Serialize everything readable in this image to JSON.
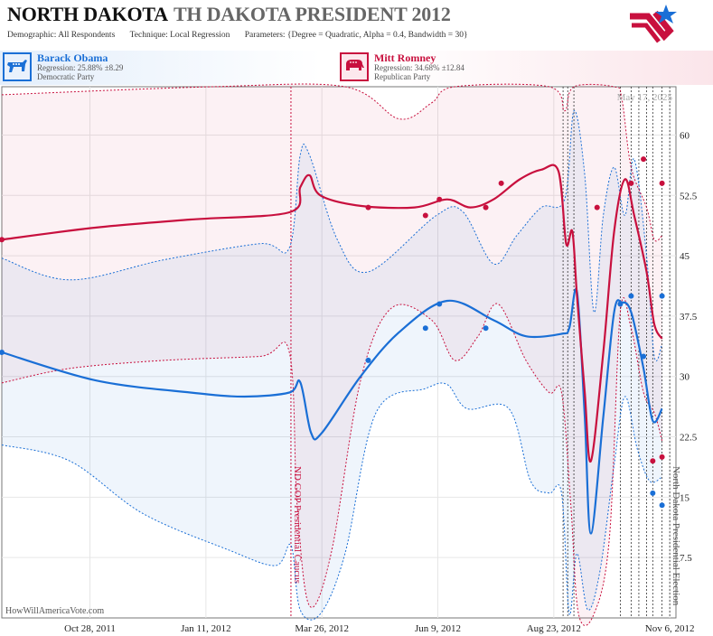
{
  "header": {
    "title_main": "NORTH DAKOTA",
    "title_sub": "TH DAKOTA PRESIDENT 2012",
    "demographic_label": "Demographic:",
    "demographic_value": "All Respondents",
    "technique_label": "Technique:",
    "technique_value": "Local Regression",
    "parameters_label": "Parameters:",
    "parameters_value": "{Degree = Quadratic, Alpha = 0.4, Bandwidth = 30}"
  },
  "candidates": [
    {
      "name": "Barack Obama",
      "regression": "Regression: 25.88% ±8.29",
      "party": "Democratic Party",
      "color": "#1a6fd6"
    },
    {
      "name": "Mitt Romney",
      "regression": "Regression: 34.68% ±12.84",
      "party": "Republican Party",
      "color": "#c8103e"
    }
  ],
  "watermark": "HowWillAmericaVote.com",
  "datestamp": "May 17, 2025",
  "chart_data": {
    "type": "line",
    "x_axis": {
      "ticks": [
        "Oct 28, 2011",
        "Jan 11, 2012",
        "Mar 26, 2012",
        "Jun 9, 2012",
        "Aug 23, 2012",
        "Nov 6, 2012"
      ],
      "range": [
        "2011-09-01",
        "2012-11-10"
      ]
    },
    "y_axis": {
      "ticks": [
        "7.5",
        "15",
        "22.5",
        "30",
        "37.5",
        "45",
        "52.5",
        "60"
      ],
      "range": [
        0,
        66
      ]
    },
    "grid": true,
    "events": [
      {
        "date": "2012-03-06",
        "label": "ND GOP Presidential Caucus",
        "color": "#c8103e"
      },
      {
        "date": "2012-11-06",
        "label": "North Dakota Presidential Election",
        "color": "#555555"
      }
    ],
    "series": [
      {
        "name": "Barack Obama",
        "color": "#1a6fd6",
        "polls": [
          {
            "x": "2011-09-01",
            "y": 33.0
          },
          {
            "x": "2012-04-25",
            "y": 32.0
          },
          {
            "x": "2012-06-01",
            "y": 36.0
          },
          {
            "x": "2012-06-10",
            "y": 39.0
          },
          {
            "x": "2012-07-10",
            "y": 36.0
          },
          {
            "x": "2012-10-05",
            "y": 39.0
          },
          {
            "x": "2012-10-12",
            "y": 40.0
          },
          {
            "x": "2012-10-20",
            "y": 32.5
          },
          {
            "x": "2012-10-26",
            "y": 15.5
          },
          {
            "x": "2012-11-01",
            "y": 40.0
          },
          {
            "x": "2012-11-01",
            "y": 14.0
          }
        ],
        "trend": [
          {
            "x": "2011-09-01",
            "y": 33.0
          },
          {
            "x": "2011-11-01",
            "y": 29.5
          },
          {
            "x": "2012-01-01",
            "y": 28.0
          },
          {
            "x": "2012-02-05",
            "y": 27.5
          },
          {
            "x": "2012-03-05",
            "y": 28.0
          },
          {
            "x": "2012-03-12",
            "y": 29.3
          },
          {
            "x": "2012-03-19",
            "y": 23.0
          },
          {
            "x": "2012-03-26",
            "y": 23.0
          },
          {
            "x": "2012-04-20",
            "y": 30.0
          },
          {
            "x": "2012-05-15",
            "y": 35.5
          },
          {
            "x": "2012-06-15",
            "y": 39.4
          },
          {
            "x": "2012-07-15",
            "y": 37.0
          },
          {
            "x": "2012-08-05",
            "y": 35.0
          },
          {
            "x": "2012-08-28",
            "y": 35.3
          },
          {
            "x": "2012-09-02",
            "y": 36.0
          },
          {
            "x": "2012-09-07",
            "y": 40.5
          },
          {
            "x": "2012-09-12",
            "y": 25.0
          },
          {
            "x": "2012-09-16",
            "y": 10.5
          },
          {
            "x": "2012-09-24",
            "y": 25.0
          },
          {
            "x": "2012-10-01",
            "y": 38.0
          },
          {
            "x": "2012-10-06",
            "y": 39.2
          },
          {
            "x": "2012-10-12",
            "y": 38.0
          },
          {
            "x": "2012-10-20",
            "y": 31.0
          },
          {
            "x": "2012-10-26",
            "y": 24.5
          },
          {
            "x": "2012-11-01",
            "y": 26.0
          }
        ],
        "upper": [
          {
            "x": "2011-09-01",
            "y": 44.7
          },
          {
            "x": "2011-10-15",
            "y": 42.0
          },
          {
            "x": "2011-12-15",
            "y": 44.5
          },
          {
            "x": "2012-02-15",
            "y": 46.5
          },
          {
            "x": "2012-03-05",
            "y": 46.0
          },
          {
            "x": "2012-03-12",
            "y": 57.5
          },
          {
            "x": "2012-03-18",
            "y": 57.5
          },
          {
            "x": "2012-04-05",
            "y": 47.0
          },
          {
            "x": "2012-04-25",
            "y": 43.0
          },
          {
            "x": "2012-06-08",
            "y": 50.0
          },
          {
            "x": "2012-06-25",
            "y": 50.5
          },
          {
            "x": "2012-07-15",
            "y": 44.0
          },
          {
            "x": "2012-07-30",
            "y": 47.5
          },
          {
            "x": "2012-08-15",
            "y": 51.0
          },
          {
            "x": "2012-08-30",
            "y": 52.0
          },
          {
            "x": "2012-09-05",
            "y": 63.0
          },
          {
            "x": "2012-09-12",
            "y": 55.0
          },
          {
            "x": "2012-09-18",
            "y": 38.0
          },
          {
            "x": "2012-09-24",
            "y": 50.0
          },
          {
            "x": "2012-10-01",
            "y": 56.0
          },
          {
            "x": "2012-10-08",
            "y": 50.0
          },
          {
            "x": "2012-10-14",
            "y": 57.0
          },
          {
            "x": "2012-10-22",
            "y": 45.0
          },
          {
            "x": "2012-10-27",
            "y": 32.5
          },
          {
            "x": "2012-11-01",
            "y": 34.0
          }
        ],
        "lower": [
          {
            "x": "2011-09-01",
            "y": 21.5
          },
          {
            "x": "2011-10-15",
            "y": 19.5
          },
          {
            "x": "2011-12-01",
            "y": 13.0
          },
          {
            "x": "2012-01-25",
            "y": 8.5
          },
          {
            "x": "2012-02-25",
            "y": 6.5
          },
          {
            "x": "2012-03-06",
            "y": 9.0
          },
          {
            "x": "2012-03-12",
            "y": 1.0
          },
          {
            "x": "2012-03-25",
            "y": 0.5
          },
          {
            "x": "2012-04-10",
            "y": 8.0
          },
          {
            "x": "2012-04-30",
            "y": 25.5
          },
          {
            "x": "2012-06-01",
            "y": 28.5
          },
          {
            "x": "2012-06-15",
            "y": 29.0
          },
          {
            "x": "2012-06-28",
            "y": 26.0
          },
          {
            "x": "2012-07-25",
            "y": 26.0
          },
          {
            "x": "2012-08-08",
            "y": 17.0
          },
          {
            "x": "2012-08-20",
            "y": 15.5
          },
          {
            "x": "2012-08-28",
            "y": 15.5
          },
          {
            "x": "2012-09-02",
            "y": 0.5
          },
          {
            "x": "2012-09-07",
            "y": 8.0
          },
          {
            "x": "2012-09-14",
            "y": 1.0
          },
          {
            "x": "2012-09-22",
            "y": 6.0
          },
          {
            "x": "2012-10-01",
            "y": 19.0
          },
          {
            "x": "2012-10-08",
            "y": 27.5
          },
          {
            "x": "2012-10-16",
            "y": 21.0
          },
          {
            "x": "2012-10-24",
            "y": 17.0
          },
          {
            "x": "2012-11-01",
            "y": 17.5
          }
        ]
      },
      {
        "name": "Mitt Romney",
        "color": "#c8103e",
        "polls": [
          {
            "x": "2011-09-01",
            "y": 47.0
          },
          {
            "x": "2012-04-25",
            "y": 51.0
          },
          {
            "x": "2012-06-01",
            "y": 50.0
          },
          {
            "x": "2012-06-10",
            "y": 52.0
          },
          {
            "x": "2012-07-10",
            "y": 51.0
          },
          {
            "x": "2012-07-20",
            "y": 54.0
          },
          {
            "x": "2012-09-20",
            "y": 51.0
          },
          {
            "x": "2012-10-12",
            "y": 54.0
          },
          {
            "x": "2012-10-20",
            "y": 57.0
          },
          {
            "x": "2012-10-26",
            "y": 19.5
          },
          {
            "x": "2012-11-01",
            "y": 54.0
          },
          {
            "x": "2012-11-01",
            "y": 20.0
          }
        ],
        "trend": [
          {
            "x": "2011-09-01",
            "y": 47.0
          },
          {
            "x": "2011-11-01",
            "y": 48.5
          },
          {
            "x": "2012-01-01",
            "y": 49.5
          },
          {
            "x": "2012-03-05",
            "y": 50.4
          },
          {
            "x": "2012-03-12",
            "y": 53.5
          },
          {
            "x": "2012-03-18",
            "y": 55.0
          },
          {
            "x": "2012-03-25",
            "y": 52.5
          },
          {
            "x": "2012-04-20",
            "y": 51.2
          },
          {
            "x": "2012-05-25",
            "y": 51.0
          },
          {
            "x": "2012-06-15",
            "y": 52.0
          },
          {
            "x": "2012-06-30",
            "y": 51.0
          },
          {
            "x": "2012-07-15",
            "y": 52.0
          },
          {
            "x": "2012-08-01",
            "y": 54.5
          },
          {
            "x": "2012-08-15",
            "y": 55.7
          },
          {
            "x": "2012-08-26",
            "y": 55.5
          },
          {
            "x": "2012-08-31",
            "y": 46.5
          },
          {
            "x": "2012-09-04",
            "y": 48.0
          },
          {
            "x": "2012-09-07",
            "y": 40.0
          },
          {
            "x": "2012-09-12",
            "y": 28.0
          },
          {
            "x": "2012-09-16",
            "y": 19.5
          },
          {
            "x": "2012-09-24",
            "y": 33.0
          },
          {
            "x": "2012-10-01",
            "y": 48.0
          },
          {
            "x": "2012-10-08",
            "y": 54.5
          },
          {
            "x": "2012-10-14",
            "y": 50.0
          },
          {
            "x": "2012-10-22",
            "y": 43.0
          },
          {
            "x": "2012-10-27",
            "y": 36.5
          },
          {
            "x": "2012-11-01",
            "y": 34.7
          }
        ],
        "upper": [
          {
            "x": "2011-09-01",
            "y": 65.0
          },
          {
            "x": "2012-01-15",
            "y": 66.0
          },
          {
            "x": "2012-04-10",
            "y": 66.0
          },
          {
            "x": "2012-05-15",
            "y": 62.0
          },
          {
            "x": "2012-06-05",
            "y": 64.0
          },
          {
            "x": "2012-06-20",
            "y": 66.0
          },
          {
            "x": "2012-08-20",
            "y": 66.0
          },
          {
            "x": "2012-08-30",
            "y": 63.0
          },
          {
            "x": "2012-09-05",
            "y": 66.0
          },
          {
            "x": "2012-10-01",
            "y": 66.0
          },
          {
            "x": "2012-10-06",
            "y": 64.5
          },
          {
            "x": "2012-10-12",
            "y": 56.0
          },
          {
            "x": "2012-10-22",
            "y": 51.0
          },
          {
            "x": "2012-10-27",
            "y": 47.0
          },
          {
            "x": "2012-11-01",
            "y": 47.5
          }
        ],
        "lower": [
          {
            "x": "2011-09-01",
            "y": 29.2
          },
          {
            "x": "2011-10-15",
            "y": 31.0
          },
          {
            "x": "2011-12-15",
            "y": 32.0
          },
          {
            "x": "2012-02-15",
            "y": 32.5
          },
          {
            "x": "2012-03-05",
            "y": 33.0
          },
          {
            "x": "2012-03-10",
            "y": 14.0
          },
          {
            "x": "2012-03-18",
            "y": 1.5
          },
          {
            "x": "2012-04-01",
            "y": 8.0
          },
          {
            "x": "2012-04-20",
            "y": 29.5
          },
          {
            "x": "2012-05-10",
            "y": 38.5
          },
          {
            "x": "2012-06-05",
            "y": 37.0
          },
          {
            "x": "2012-06-20",
            "y": 32.0
          },
          {
            "x": "2012-07-05",
            "y": 35.0
          },
          {
            "x": "2012-07-18",
            "y": 39.0
          },
          {
            "x": "2012-08-05",
            "y": 32.0
          },
          {
            "x": "2012-08-20",
            "y": 28.0
          },
          {
            "x": "2012-08-28",
            "y": 28.0
          },
          {
            "x": "2012-09-03",
            "y": 14.0
          },
          {
            "x": "2012-09-08",
            "y": 0.5
          },
          {
            "x": "2012-09-18",
            "y": 0.5
          },
          {
            "x": "2012-09-28",
            "y": 10.0
          },
          {
            "x": "2012-10-05",
            "y": 38.0
          },
          {
            "x": "2012-10-12",
            "y": 36.0
          },
          {
            "x": "2012-10-20",
            "y": 28.0
          },
          {
            "x": "2012-10-27",
            "y": 25.5
          },
          {
            "x": "2012-11-01",
            "y": 22.0
          }
        ]
      }
    ]
  }
}
